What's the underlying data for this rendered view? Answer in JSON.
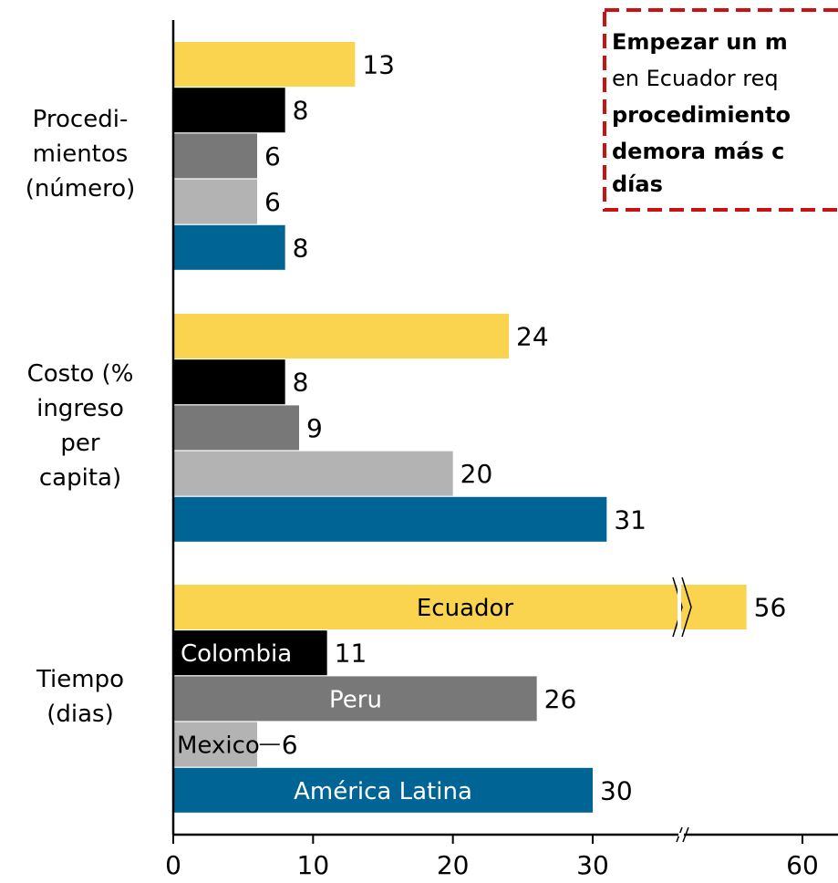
{
  "chart_data": {
    "type": "bar",
    "orientation": "horizontal",
    "categories": [
      [
        "Procedi-",
        "mientos",
        "(número)"
      ],
      [
        "Costo (%",
        "ingreso",
        "per",
        "capita)"
      ],
      [
        "Tiempo",
        "(dias)"
      ]
    ],
    "series": [
      {
        "name": "Ecuador",
        "color": "#fad44f",
        "values": [
          13,
          24,
          56
        ]
      },
      {
        "name": "Colombia",
        "color": "#000000",
        "values": [
          8,
          8,
          11
        ]
      },
      {
        "name": "Peru",
        "color": "#787878",
        "values": [
          6,
          9,
          26
        ]
      },
      {
        "name": "Mexico",
        "color": "#b3b3b3",
        "values": [
          6,
          20,
          6
        ]
      },
      {
        "name": "América Latina",
        "color": "#006494",
        "values": [
          8,
          31,
          30
        ]
      }
    ],
    "xlim": [
      0,
      60
    ],
    "axis_break": [
      36,
      51
    ],
    "xticks": [
      0,
      10,
      20,
      30,
      60
    ],
    "annotation": [
      {
        "text": "Empezar un m",
        "bold": true
      },
      {
        "text": "en Ecuador req",
        "bold": false
      },
      {
        "text": "procedimiento",
        "bold": true
      },
      {
        "text": "demora más c",
        "bold": true
      },
      {
        "text": "días",
        "bold": true
      }
    ]
  }
}
